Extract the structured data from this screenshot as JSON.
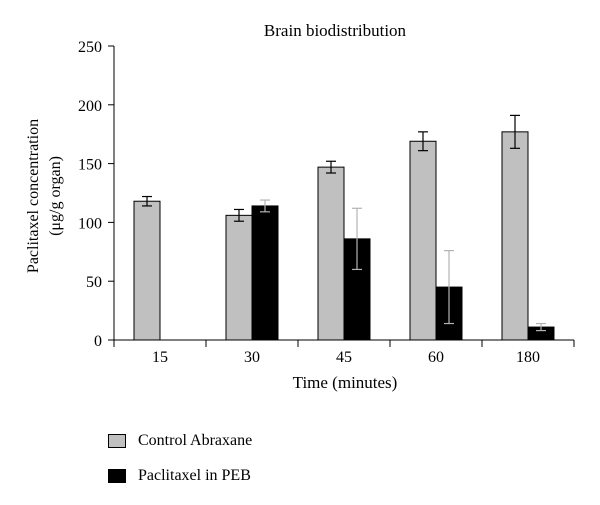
{
  "chart_data": {
    "type": "bar",
    "title": "Brain biodistribution",
    "xlabel": "Time (minutes)",
    "ylabel_line1": "Paclitaxel concentration",
    "ylabel_line2": "(μg/g organ)",
    "categories": [
      "15",
      "30",
      "45",
      "60",
      "180"
    ],
    "ylim": [
      0,
      250
    ],
    "yticks": [
      "0",
      "50",
      "100",
      "150",
      "200",
      "250"
    ],
    "grid": false,
    "legend_position": "bottom-left",
    "series": [
      {
        "name": "Control Abraxane",
        "color": "#c0c0c0",
        "error_bar_color": "#000000",
        "values": [
          118,
          106,
          147,
          169,
          177
        ],
        "errors": [
          4,
          5,
          5,
          8,
          14
        ]
      },
      {
        "name": "Paclitaxel in PEB",
        "color": "#000000",
        "error_bar_color": "#b3b3b3",
        "values": [
          null,
          114,
          86,
          45,
          11
        ],
        "errors": [
          null,
          5,
          26,
          31,
          3
        ]
      }
    ]
  }
}
